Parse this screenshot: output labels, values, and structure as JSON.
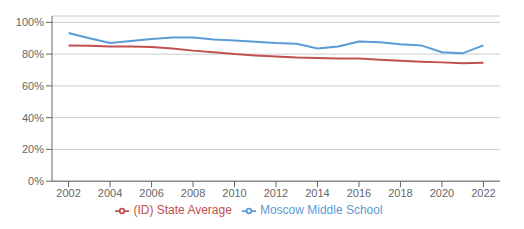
{
  "chart_data": {
    "type": "line",
    "x": [
      2002,
      2003,
      2004,
      2005,
      2006,
      2007,
      2008,
      2009,
      2010,
      2011,
      2012,
      2013,
      2014,
      2015,
      2016,
      2017,
      2018,
      2019,
      2020,
      2021,
      2022
    ],
    "series": [
      {
        "name": "Moscow Middle School",
        "color": "#5b9bd5",
        "values": [
          0.933,
          0.9,
          0.87,
          0.882,
          0.895,
          0.905,
          0.905,
          0.892,
          0.885,
          0.878,
          0.87,
          0.865,
          0.835,
          0.848,
          0.88,
          0.875,
          0.862,
          0.855,
          0.812,
          0.805,
          0.855
        ]
      },
      {
        "name": "(ID) State Average",
        "color": "#c0504d",
        "values": [
          0.855,
          0.853,
          0.848,
          0.848,
          0.845,
          0.835,
          0.822,
          0.812,
          0.8,
          0.792,
          0.785,
          0.778,
          0.775,
          0.773,
          0.772,
          0.765,
          0.758,
          0.752,
          0.748,
          0.742,
          0.746
        ]
      }
    ],
    "xlim": [
      2001.2,
      2022.8
    ],
    "xticks": [
      2002,
      2004,
      2006,
      2008,
      2010,
      2012,
      2014,
      2016,
      2018,
      2020,
      2022
    ],
    "ylim": [
      0,
      1.04
    ],
    "yticks": [
      {
        "value": 0.0,
        "label": "0%"
      },
      {
        "value": 0.2,
        "label": "20%"
      },
      {
        "value": 0.4,
        "label": "40%"
      },
      {
        "value": 0.6,
        "label": "60%"
      },
      {
        "value": 0.8,
        "label": "80%"
      },
      {
        "value": 1.0,
        "label": "100%"
      }
    ],
    "grid": true,
    "legend": "bottom"
  }
}
